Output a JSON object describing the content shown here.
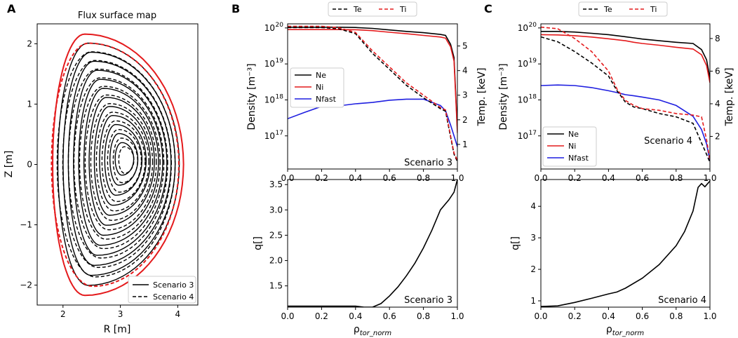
{
  "colors": {
    "black": "#000000",
    "red": "#e41a1c",
    "blue": "#1f1fe0"
  },
  "panels": {
    "A": {
      "letter": "A",
      "chart_data": {
        "type": "line",
        "title": "Flux surface map",
        "xlabel": "R [m]",
        "ylabel": "Z [m]",
        "xlim": [
          1.55,
          4.35
        ],
        "ylim": [
          -2.33,
          2.33
        ],
        "xticks": [
          "2",
          "3",
          "4"
        ],
        "yticks": [
          "−2",
          "−1",
          "0",
          "1",
          "2"
        ],
        "legend": {
          "placement": "lower-right",
          "entries": [
            "Scenario 3",
            "Scenario 4"
          ]
        },
        "series": [
          {
            "name": "Scenario 3",
            "style": "solid",
            "axis_center": [
              3.08,
              0.1
            ],
            "axis_minor_radius": 0.08,
            "lcfs": {
              "r_in": 1.82,
              "r_out": 4.1,
              "r_top": 2.38,
              "z_top": 2.16,
              "r_bot": 2.38,
              "z_bot": -2.17
            },
            "surfaces": 13
          },
          {
            "name": "Scenario 4",
            "style": "dashed",
            "axis_center": [
              3.12,
              0.08
            ],
            "axis_minor_radius": 0.05,
            "lcfs": {
              "r_in": 1.8,
              "r_out": 4.02,
              "r_top": 2.45,
              "z_top": 2.01,
              "r_bot": 2.52,
              "z_bot": -2.02
            },
            "surfaces": 13
          }
        ]
      }
    },
    "B": {
      "letter": "B",
      "scenario_label": "Scenario 3",
      "legend_top": [
        "Te",
        "Ti"
      ],
      "density": {
        "chart_data": {
          "type": "line",
          "xlabel": "",
          "ylabel": "Density [m⁻³]",
          "y2label": "Temp. [keV]",
          "xlim": [
            0,
            1
          ],
          "ylog": true,
          "ylim": [
            1.2e+16,
            1.3e+20
          ],
          "y2lim": [
            0,
            5.9
          ],
          "yticks": [
            "10",
            "10",
            "10",
            "10"
          ],
          "ytick_exps": [
            "17",
            "18",
            "19",
            "20"
          ],
          "y2ticks": [
            "1",
            "2",
            "3",
            "4",
            "5"
          ],
          "xticks": [
            "0.0",
            "0.2",
            "0.4",
            "0.6",
            "0.8",
            "1.0"
          ],
          "legend": {
            "placement": "middle-left",
            "entries": [
              "Ne",
              "Ni",
              "Nfast"
            ]
          },
          "x": [
            0,
            0.1,
            0.2,
            0.3,
            0.4,
            0.5,
            0.6,
            0.7,
            0.8,
            0.9,
            0.93,
            0.96,
            0.98,
            1.0
          ],
          "series": [
            {
              "name": "Ne",
              "axis": "left",
              "color": "black",
              "style": "solid",
              "values": [
                1.05e+20,
                1.05e+20,
                1.05e+20,
                1.05e+20,
                1.03e+20,
                9.7e+19,
                8.8e+19,
                8e+19,
                7.4e+19,
                6.6e+19,
                6.2e+19,
                3.5e+19,
                1.5e+19,
                1.5e+17
              ]
            },
            {
              "name": "Ni",
              "axis": "left",
              "color": "red",
              "style": "solid",
              "values": [
                9e+19,
                9e+19,
                9e+19,
                9e+19,
                8.9e+19,
                8.4e+19,
                7.6e+19,
                6.9e+19,
                6.2e+19,
                5.6e+19,
                5.2e+19,
                3e+19,
                1.2e+19,
                1.2e+17
              ]
            },
            {
              "name": "Nfast",
              "axis": "left",
              "color": "blue",
              "style": "solid",
              "values": [
                3e+17,
                4.5e+17,
                6.6e+17,
                6.8e+17,
                7.8e+17,
                8.5e+17,
                9.8e+17,
                1.05e+18,
                1.05e+18,
                7e+17,
                5e+17,
                2e+17,
                1e+17,
                5e+16
              ]
            },
            {
              "name": "Te",
              "axis": "right",
              "color": "black",
              "style": "dashed",
              "values": [
                5.75,
                5.75,
                5.75,
                5.7,
                5.5,
                4.7,
                4.05,
                3.4,
                2.9,
                2.45,
                2.35,
                1.3,
                0.6,
                0.3
              ]
            },
            {
              "name": "Ti",
              "axis": "right",
              "color": "red",
              "style": "dashed",
              "values": [
                5.8,
                5.8,
                5.8,
                5.75,
                5.55,
                4.8,
                4.15,
                3.5,
                3.0,
                2.5,
                2.4,
                1.35,
                0.65,
                0.35
              ]
            }
          ]
        }
      },
      "q": {
        "chart_data": {
          "type": "line",
          "xlabel": "ρ",
          "xlabel_sub": "tor_norm",
          "ylabel": "q[]",
          "xlim": [
            0,
            1
          ],
          "ylim": [
            1.08,
            3.6
          ],
          "yticks": [
            "1.5",
            "2.0",
            "2.5",
            "3.0",
            "3.5"
          ],
          "xticks": [
            "0.0",
            "0.2",
            "0.4",
            "0.6",
            "0.8",
            "1.0"
          ],
          "x": [
            0,
            0.2,
            0.4,
            0.45,
            0.5,
            0.55,
            0.6,
            0.65,
            0.7,
            0.75,
            0.8,
            0.85,
            0.9,
            0.95,
            0.98,
            1.0
          ],
          "series": [
            {
              "name": "q",
              "color": "black",
              "style": "solid",
              "values": [
                1.1,
                1.1,
                1.1,
                1.08,
                1.08,
                1.15,
                1.3,
                1.48,
                1.7,
                1.95,
                2.25,
                2.6,
                3.0,
                3.2,
                3.35,
                3.6
              ]
            }
          ]
        }
      }
    },
    "C": {
      "letter": "C",
      "scenario_label": "Scenario 4",
      "legend_top": [
        "Te",
        "Ti"
      ],
      "density": {
        "chart_data": {
          "type": "line",
          "xlabel": "",
          "ylabel": "Density [m⁻³]",
          "y2label": "Temp. [keV]",
          "xlim": [
            0,
            1
          ],
          "ylog": true,
          "ylim": [
            1.2e+16,
            1.3e+20
          ],
          "y2lim": [
            0,
            8.9
          ],
          "yticks": [
            "10",
            "10",
            "10",
            "10"
          ],
          "ytick_exps": [
            "17",
            "18",
            "19",
            "20"
          ],
          "y2ticks": [
            "2",
            "4",
            "6",
            "8"
          ],
          "xticks": [
            "0.0",
            "0.2",
            "0.4",
            "0.6",
            "0.8",
            "1.0"
          ],
          "legend": {
            "placement": "lower-left",
            "entries": [
              "Ne",
              "Ni",
              "Nfast"
            ]
          },
          "x": [
            0,
            0.1,
            0.2,
            0.3,
            0.4,
            0.45,
            0.5,
            0.55,
            0.6,
            0.7,
            0.8,
            0.9,
            0.95,
            0.98,
            1.0
          ],
          "series": [
            {
              "name": "Ne",
              "axis": "left",
              "color": "black",
              "style": "solid",
              "values": [
                8e+19,
                8e+19,
                7.7e+19,
                7.1e+19,
                6.5e+19,
                6.1e+19,
                5.7e+19,
                5.3e+19,
                4.9e+19,
                4.4e+19,
                4e+19,
                3.7e+19,
                2.5e+19,
                1.3e+19,
                4e+18
              ]
            },
            {
              "name": "Ni",
              "axis": "left",
              "color": "red",
              "style": "solid",
              "values": [
                6.5e+19,
                6.4e+19,
                6.1e+19,
                5.6e+19,
                5e+19,
                4.7e+19,
                4.4e+19,
                4e+19,
                3.7e+19,
                3.3e+19,
                2.9e+19,
                2.6e+19,
                1.8e+19,
                9e+18,
                3e+18
              ]
            },
            {
              "name": "Nfast",
              "axis": "left",
              "color": "blue",
              "style": "solid",
              "values": [
                2.5e+18,
                2.6e+18,
                2.5e+18,
                2.2e+18,
                1.8e+18,
                1.6e+18,
                1.4e+18,
                1.3e+18,
                1.2e+18,
                1e+18,
                7e+17,
                3.5e+17,
                1.5e+17,
                6e+16,
                2e+16
              ]
            },
            {
              "name": "Te",
              "axis": "right",
              "color": "black",
              "style": "dashed",
              "values": [
                8.1,
                7.8,
                7.2,
                6.5,
                5.7,
                4.8,
                4.1,
                3.8,
                3.7,
                3.4,
                3.2,
                2.8,
                1.6,
                0.9,
                0.4
              ]
            },
            {
              "name": "Ti",
              "axis": "right",
              "color": "red",
              "style": "dashed",
              "values": [
                8.7,
                8.6,
                8.0,
                7.2,
                6.0,
                4.9,
                4.2,
                3.9,
                3.7,
                3.6,
                3.4,
                3.3,
                3.2,
                1.8,
                0.5
              ]
            }
          ]
        }
      },
      "q": {
        "chart_data": {
          "type": "line",
          "xlabel": "ρ",
          "xlabel_sub": "tor_norm",
          "ylabel": "q[]",
          "xlim": [
            0,
            1
          ],
          "ylim": [
            0.8,
            4.85
          ],
          "yticks": [
            "1",
            "2",
            "3",
            "4"
          ],
          "xticks": [
            "0.0",
            "0.2",
            "0.4",
            "0.6",
            "0.8",
            "1.0"
          ],
          "x": [
            0,
            0.1,
            0.2,
            0.3,
            0.4,
            0.45,
            0.5,
            0.6,
            0.7,
            0.8,
            0.85,
            0.9,
            0.93,
            0.95,
            0.97,
            1.0
          ],
          "series": [
            {
              "name": "q",
              "color": "black",
              "style": "solid",
              "values": [
                0.82,
                0.84,
                0.95,
                1.08,
                1.22,
                1.28,
                1.4,
                1.72,
                2.15,
                2.75,
                3.2,
                3.85,
                4.6,
                4.72,
                4.62,
                4.8
              ]
            }
          ]
        }
      }
    }
  }
}
